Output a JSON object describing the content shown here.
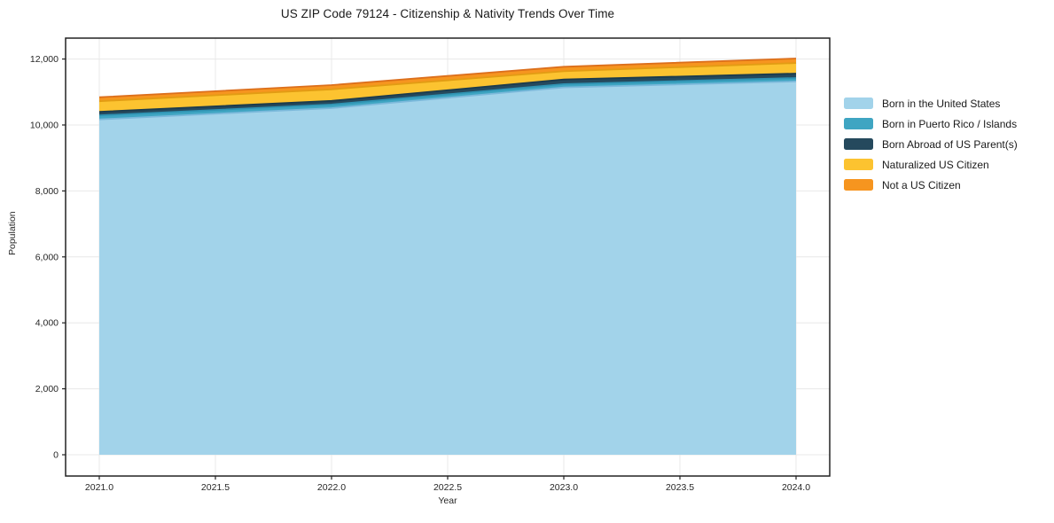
{
  "title": "US ZIP Code 79124 - Citizenship & Nativity Trends Over Time",
  "chart_data": {
    "type": "area",
    "stacked": true,
    "title": "US ZIP Code 79124 - Citizenship & Nativity Trends Over Time",
    "xlabel": "Year",
    "ylabel": "Population",
    "x": [
      2021,
      2022,
      2023,
      2024
    ],
    "series": [
      {
        "name": "Born in the United States",
        "values": [
          10170,
          10510,
          11140,
          11320
        ],
        "fill": "#A2D3EA",
        "edge": "#7CB9DB"
      },
      {
        "name": "Born in Puerto Rico / Islands",
        "values": [
          120,
          110,
          100,
          105
        ],
        "fill": "#3FA5C2",
        "edge": "#2F93B3"
      },
      {
        "name": "Born Abroad of US Parent(s)",
        "values": [
          110,
          110,
          140,
          135
        ],
        "fill": "#25495D",
        "edge": "#1B3B4D"
      },
      {
        "name": "Naturalized US Citizen",
        "values": [
          320,
          350,
          250,
          320
        ],
        "fill": "#FCC330",
        "edge": "#E29C13"
      },
      {
        "name": "Not a US Citizen",
        "values": [
          120,
          130,
          135,
          135
        ],
        "fill": "#F6951F",
        "edge": "#DC6F1C"
      }
    ],
    "stack_totals": [
      10840,
      11210,
      11765,
      12015
    ],
    "xticks": [
      2021.0,
      2021.5,
      2022.0,
      2022.5,
      2023.0,
      2023.5,
      2024.0
    ],
    "xticklabels": [
      "2021.0",
      "2021.5",
      "2022.0",
      "2022.5",
      "2023.0",
      "2023.5",
      "2024.0"
    ],
    "yticks": [
      0,
      2000,
      4000,
      6000,
      8000,
      10000,
      12000
    ],
    "yticklabels": [
      "0",
      "2,000",
      "4,000",
      "6,000",
      "8,000",
      "10,000",
      "12,000"
    ],
    "xlim": [
      2020.855,
      2024.145
    ],
    "ylim": [
      -645,
      12634
    ],
    "grid": true,
    "legend_position": "right-outside",
    "colors": {
      "background": "#ffffff",
      "grid": "#e8e8e8",
      "frame": "#222222",
      "tick_text": "#262626",
      "title_text": "#1a1a1a"
    }
  }
}
